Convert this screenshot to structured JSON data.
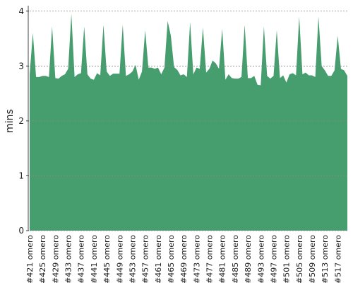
{
  "chart_data": {
    "type": "area",
    "ylabel": "mins",
    "color": "#469d6e",
    "grid": true,
    "ylim": [
      0,
      4.1
    ],
    "yticks": [
      0,
      1,
      2,
      3,
      4
    ],
    "categories": [
      "#421 omero",
      null,
      null,
      null,
      "#425 omero",
      null,
      null,
      null,
      "#429 omero",
      null,
      null,
      null,
      "#433 omero",
      null,
      null,
      null,
      "#437 omero",
      null,
      null,
      null,
      "#441 omero",
      null,
      null,
      null,
      "#445 omero",
      null,
      null,
      null,
      "#449 omero",
      null,
      null,
      null,
      "#453 omero",
      null,
      null,
      null,
      "#457 omero",
      null,
      null,
      null,
      "#461 omero",
      null,
      null,
      null,
      "#465 omero",
      null,
      null,
      null,
      "#469 omero",
      null,
      null,
      null,
      "#473 omero",
      null,
      null,
      null,
      "#477 omero",
      null,
      null,
      null,
      "#481 omero",
      null,
      null,
      null,
      "#485 omero",
      null,
      null,
      null,
      "#489 omero",
      null,
      null,
      null,
      "#493 omero",
      null,
      null,
      null,
      "#497 omero",
      null,
      null,
      null,
      "#501 omero",
      null,
      null,
      null,
      "#505 omero",
      null,
      null,
      null,
      "#509 omero",
      null,
      null,
      null,
      "#513 omero",
      null,
      null,
      null,
      "#517 omero",
      null,
      null,
      null
    ],
    "values": [
      2.85,
      3.6,
      2.8,
      2.8,
      2.82,
      2.82,
      2.8,
      3.72,
      2.78,
      2.77,
      2.82,
      2.85,
      2.95,
      3.95,
      2.8,
      2.85,
      2.87,
      3.72,
      2.85,
      2.77,
      2.75,
      2.87,
      2.83,
      3.75,
      2.9,
      2.82,
      2.86,
      2.86,
      2.86,
      3.75,
      2.82,
      2.85,
      2.9,
      3.02,
      2.75,
      2.9,
      3.65,
      2.97,
      2.97,
      2.95,
      2.97,
      2.85,
      2.97,
      3.82,
      3.55,
      2.98,
      2.93,
      2.83,
      2.85,
      2.8,
      3.8,
      2.85,
      2.97,
      2.95,
      3.7,
      2.88,
      2.95,
      3.1,
      3.05,
      2.95,
      3.68,
      2.75,
      2.85,
      2.78,
      2.77,
      2.77,
      2.8,
      3.75,
      2.78,
      2.78,
      2.82,
      2.66,
      2.65,
      3.72,
      2.82,
      2.77,
      2.82,
      3.65,
      2.78,
      2.83,
      2.7,
      2.85,
      2.87,
      2.83,
      3.9,
      2.85,
      2.88,
      2.83,
      2.83,
      2.8,
      3.9,
      3.0,
      2.92,
      2.82,
      2.82,
      2.92,
      3.55,
      2.95,
      2.92,
      2.82
    ]
  }
}
